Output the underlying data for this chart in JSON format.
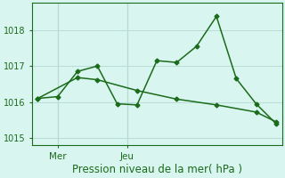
{
  "line1_x": [
    0,
    1,
    2,
    3,
    4,
    5,
    6,
    7,
    8,
    9,
    10,
    11,
    12
  ],
  "line1_y": [
    1016.1,
    1016.15,
    1016.85,
    1017.0,
    1015.95,
    1015.92,
    1017.15,
    1017.1,
    1017.55,
    1018.38,
    1016.65,
    1015.95,
    1015.4
  ],
  "line2_x": [
    0,
    2,
    3,
    5,
    7,
    9,
    11,
    12
  ],
  "line2_y": [
    1016.1,
    1016.68,
    1016.62,
    1016.32,
    1016.08,
    1015.92,
    1015.72,
    1015.45
  ],
  "line_color": "#1a6b1a",
  "background_color": "#d9f5f0",
  "grid_color": "#b8ddd6",
  "yticks": [
    1015,
    1016,
    1017,
    1018
  ],
  "ylim": [
    1014.8,
    1018.75
  ],
  "xlim": [
    -0.3,
    12.3
  ],
  "xtick_positions": [
    1.0,
    4.5
  ],
  "xtick_labels": [
    "Mer",
    "Jeu"
  ],
  "vline_positions": [
    1.0,
    4.5
  ],
  "vline_color": "#999999",
  "marker": "D",
  "markersize": 2.5,
  "linewidth": 1.1,
  "xlabel": "Pression niveau de la mer( hPa )",
  "xlabel_fontsize": 8.5,
  "ytick_fontsize": 7,
  "xtick_fontsize": 7.5
}
